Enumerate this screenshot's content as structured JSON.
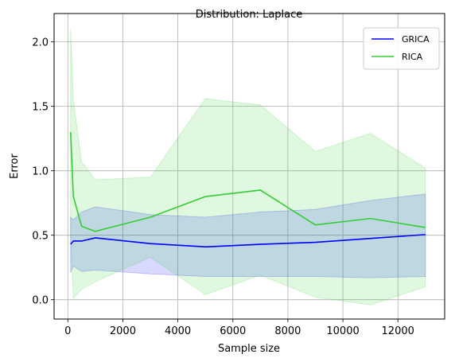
{
  "chart_data": {
    "type": "line",
    "title": "Distribution: Laplace",
    "xlabel": "Sample size",
    "ylabel": "Error",
    "xlim": [
      -500,
      13700
    ],
    "ylim": [
      -0.15,
      2.22
    ],
    "xticks": [
      0,
      2000,
      4000,
      6000,
      8000,
      10000,
      12000
    ],
    "xtick_labels": [
      "0",
      "2000",
      "4000",
      "6000",
      "8000",
      "10000",
      "12000"
    ],
    "yticks": [
      0.0,
      0.5,
      1.0,
      1.5,
      2.0
    ],
    "ytick_labels": [
      "0.0",
      "0.5",
      "1.0",
      "1.5",
      "2.0"
    ],
    "grid": true,
    "legend_position": "top-right",
    "series": [
      {
        "name": "GRICA",
        "color": "#0000ff",
        "band_color": "#0000ff",
        "band_opacity": 0.15,
        "x": [
          100,
          200,
          500,
          1000,
          3000,
          5000,
          7000,
          9000,
          11000,
          13000
        ],
        "values": [
          0.43,
          0.455,
          0.455,
          0.48,
          0.435,
          0.41,
          0.43,
          0.445,
          0.475,
          0.505
        ],
        "upper": [
          0.64,
          0.62,
          0.68,
          0.72,
          0.66,
          0.64,
          0.68,
          0.7,
          0.77,
          0.82
        ],
        "lower": [
          0.21,
          0.26,
          0.22,
          0.23,
          0.2,
          0.18,
          0.18,
          0.18,
          0.17,
          0.18
        ]
      },
      {
        "name": "RICA",
        "color": "#32cd32",
        "band_color": "#32cd32",
        "band_opacity": 0.15,
        "x": [
          100,
          200,
          500,
          1000,
          3000,
          5000,
          7000,
          9000,
          11000,
          13000
        ],
        "values": [
          1.3,
          0.8,
          0.57,
          0.53,
          0.64,
          0.8,
          0.85,
          0.58,
          0.63,
          0.56
        ],
        "upper": [
          2.1,
          1.55,
          1.07,
          0.93,
          0.95,
          1.56,
          1.51,
          1.15,
          1.29,
          1.02
        ],
        "lower": [
          0.5,
          0.01,
          0.08,
          0.14,
          0.33,
          0.04,
          0.19,
          0.02,
          -0.04,
          0.1
        ]
      }
    ]
  }
}
